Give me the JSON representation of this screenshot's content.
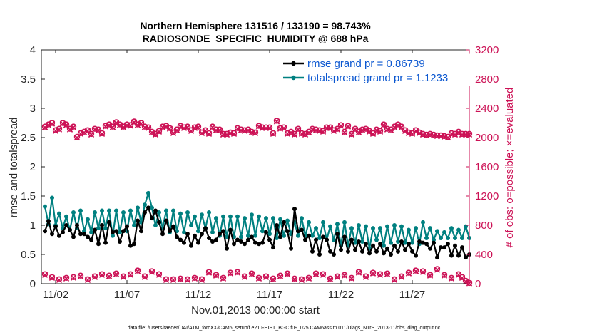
{
  "colors": {
    "rmse": "#000000",
    "spread": "#008080",
    "obs": "#cc1155",
    "legend_text": "#0b57d0",
    "axis": "#262626"
  },
  "footer_text": "data file: /Users/raeder/DAI/ATM_forcXX/CAM6_setup/f.e21.FHIST_BGC.f09_025.CAM6assim.011/Diags_NTrS_2013-11/obs_diag_output.nc",
  "chart_data": {
    "type": "line",
    "title": "Northern Hemisphere 131516 / 133190 = 98.743%",
    "subtitle": "RADIOSONDE_SPECIFIC_HUMIDITY @ 688 hPa",
    "xlabel": "Nov.01,2013 00:00:00 start",
    "ylabel": "rmse and totalspread",
    "y2label": "# of obs: o=possible; ×=evaluated",
    "xlim": [
      1,
      31
    ],
    "ylim": [
      0,
      4
    ],
    "y2lim": [
      0,
      3200
    ],
    "x_ticks": [
      2,
      7,
      12,
      17,
      22,
      27
    ],
    "x_tick_labels": [
      "11/02",
      "11/07",
      "11/12",
      "11/17",
      "11/22",
      "11/27"
    ],
    "y_ticks": [
      0,
      0.5,
      1,
      1.5,
      2,
      2.5,
      3,
      3.5,
      4
    ],
    "y_tick_labels": [
      "0",
      "0.5",
      "1",
      "1.5",
      "2",
      "2.5",
      "3",
      "3.5",
      "4"
    ],
    "y2_ticks": [
      0,
      400,
      800,
      1200,
      1600,
      2000,
      2400,
      2800,
      3200
    ],
    "y2_tick_labels": [
      "0",
      "400",
      "800",
      "1200",
      "1600",
      "2000",
      "2400",
      "2800",
      "3200"
    ],
    "legend": [
      "rmse grand pr = 0.86739",
      "totalspread grand pr = 1.1233"
    ],
    "x": [
      1.25,
      1.5,
      1.75,
      2.0,
      2.25,
      2.5,
      2.75,
      3.0,
      3.25,
      3.5,
      3.75,
      4.0,
      4.25,
      4.5,
      4.75,
      5.0,
      5.25,
      5.5,
      5.75,
      6.0,
      6.25,
      6.5,
      6.75,
      7.0,
      7.25,
      7.5,
      7.75,
      8.0,
      8.25,
      8.5,
      8.75,
      9.0,
      9.25,
      9.5,
      9.75,
      10.0,
      10.25,
      10.5,
      10.75,
      11.0,
      11.25,
      11.5,
      11.75,
      12.0,
      12.25,
      12.5,
      12.75,
      13.0,
      13.25,
      13.5,
      13.75,
      14.0,
      14.25,
      14.5,
      14.75,
      15.0,
      15.25,
      15.5,
      15.75,
      16.0,
      16.25,
      16.5,
      16.75,
      17.0,
      17.25,
      17.5,
      17.75,
      18.0,
      18.25,
      18.5,
      18.75,
      19.0,
      19.25,
      19.5,
      19.75,
      20.0,
      20.25,
      20.5,
      20.75,
      21.0,
      21.25,
      21.5,
      21.75,
      22.0,
      22.25,
      22.5,
      22.75,
      23.0,
      23.25,
      23.5,
      23.75,
      24.0,
      24.25,
      24.5,
      24.75,
      25.0,
      25.25,
      25.5,
      25.75,
      26.0,
      26.25,
      26.5,
      26.75,
      27.0,
      27.25,
      27.5,
      27.75,
      28.0,
      28.25,
      28.5,
      28.75,
      29.0,
      29.25,
      29.5,
      29.75,
      30.0,
      30.25,
      30.5,
      30.75,
      31.0
    ],
    "series": [
      {
        "name": "rmse",
        "marker": "dot",
        "values": [
          0.9,
          1.07,
          0.85,
          0.98,
          0.82,
          0.88,
          1.0,
          0.92,
          0.8,
          1.0,
          0.85,
          0.85,
          0.8,
          0.75,
          0.92,
          0.68,
          1.0,
          0.7,
          1.05,
          0.88,
          0.9,
          0.72,
          0.9,
          0.98,
          0.65,
          0.68,
          1.08,
          0.9,
          1.22,
          1.3,
          1.12,
          1.25,
          1.05,
          0.85,
          1.08,
          0.9,
          0.98,
          0.8,
          0.75,
          0.7,
          0.85,
          0.65,
          0.82,
          0.7,
          0.85,
          0.95,
          0.78,
          0.72,
          0.75,
          0.85,
          0.9,
          0.6,
          0.92,
          0.68,
          0.75,
          0.72,
          0.68,
          0.75,
          0.8,
          0.7,
          0.68,
          0.7,
          0.88,
          0.75,
          0.62,
          1.0,
          0.8,
          1.05,
          0.9,
          0.6,
          1.28,
          0.9,
          0.92,
          0.75,
          0.82,
          0.55,
          0.75,
          0.5,
          0.8,
          0.75,
          0.55,
          0.5,
          0.85,
          0.58,
          0.8,
          0.55,
          0.75,
          0.58,
          0.72,
          0.55,
          0.68,
          0.52,
          0.65,
          0.55,
          0.68,
          0.52,
          0.6,
          0.5,
          0.65,
          0.55,
          0.72,
          0.58,
          0.68,
          0.55,
          0.48,
          0.72,
          0.7,
          0.68,
          0.6,
          0.7,
          0.45,
          0.62,
          0.62,
          0.68,
          0.48,
          0.65,
          0.48,
          0.62,
          0.45,
          0.5
        ]
      },
      {
        "name": "totalspread",
        "marker": "dot",
        "values": [
          1.32,
          1.02,
          1.47,
          1.0,
          1.2,
          0.95,
          1.15,
          0.92,
          1.22,
          0.95,
          1.25,
          0.9,
          1.1,
          0.88,
          1.22,
          0.95,
          1.25,
          0.95,
          1.25,
          0.82,
          1.25,
          0.88,
          1.22,
          0.9,
          1.25,
          1.0,
          1.3,
          1.05,
          1.35,
          1.55,
          1.3,
          1.0,
          1.22,
          0.95,
          1.25,
          0.88,
          1.25,
          0.9,
          1.2,
          0.88,
          1.22,
          1.0,
          1.15,
          0.9,
          1.18,
          0.95,
          1.22,
          0.88,
          1.12,
          0.82,
          1.15,
          0.8,
          1.15,
          0.8,
          1.15,
          0.8,
          1.12,
          0.82,
          1.18,
          0.82,
          1.15,
          0.9,
          1.12,
          0.85,
          1.12,
          0.78,
          1.1,
          0.82,
          1.08,
          0.85,
          1.05,
          0.82,
          1.12,
          0.82,
          1.05,
          0.82,
          0.95,
          0.78,
          1.05,
          0.75,
          0.98,
          0.75,
          1.02,
          0.65,
          1.05,
          0.65,
          0.95,
          0.7,
          1.0,
          0.72,
          0.98,
          0.6,
          0.95,
          0.75,
          0.95,
          0.65,
          0.98,
          0.7,
          1.0,
          0.72,
          0.98,
          0.7,
          0.92,
          0.7,
          0.95,
          0.68,
          1.05,
          0.78,
          0.95,
          0.75,
          0.9,
          0.78,
          0.88,
          0.78,
          0.95,
          0.78,
          0.92,
          0.78,
          0.98,
          0.78
        ]
      },
      {
        "name": "obs_possible",
        "axis": "right",
        "marker": "o",
        "values": [
          2150,
          2180,
          2200,
          2100,
          2120,
          2200,
          2180,
          2120,
          2150,
          2010,
          2060,
          2080,
          2100,
          2050,
          2120,
          2110,
          2060,
          2160,
          2180,
          2150,
          2210,
          2180,
          2150,
          2180,
          2170,
          2220,
          2180,
          2200,
          2150,
          2140,
          2080,
          2050,
          2090,
          2150,
          2160,
          2130,
          2070,
          2110,
          2160,
          2140,
          2150,
          2100,
          2140,
          2150,
          2070,
          2100,
          2060,
          2150,
          2110,
          2110,
          2050,
          2050,
          2070,
          2060,
          2130,
          2110,
          2100,
          2110,
          2080,
          2070,
          2160,
          2140,
          2140,
          2140,
          2060,
          2230,
          2130,
          2140,
          2060,
          2080,
          2050,
          2120,
          2060,
          2050,
          2080,
          2120,
          2110,
          2100,
          2090,
          2140,
          2140,
          2100,
          2120,
          2170,
          2080,
          2160,
          2050,
          2120,
          2080,
          2110,
          2120,
          2090,
          2060,
          2110,
          2090,
          2180,
          2120,
          2110,
          2150,
          2180,
          2150,
          2100,
          2070,
          2060,
          2100,
          2070,
          2050,
          2040,
          2050,
          2040,
          2030,
          2030,
          2020,
          2010,
          2060,
          2050,
          2080,
          2050,
          2050,
          2050
        ]
      },
      {
        "name": "obs_evaluated",
        "axis": "right",
        "marker": "x",
        "values": [
          2140,
          2170,
          2190,
          2090,
          2110,
          2190,
          2170,
          2110,
          2140,
          2000,
          2050,
          2070,
          2090,
          2040,
          2110,
          2100,
          2050,
          2150,
          2170,
          2140,
          2200,
          2170,
          2140,
          2170,
          2160,
          2210,
          2170,
          2190,
          2140,
          2130,
          2070,
          2040,
          2080,
          2140,
          2150,
          2120,
          2060,
          2100,
          2150,
          2130,
          2140,
          2090,
          2130,
          2140,
          2060,
          2090,
          2050,
          2140,
          2100,
          2100,
          2040,
          2040,
          2060,
          2050,
          2120,
          2100,
          2090,
          2100,
          2070,
          2060,
          2150,
          2130,
          2130,
          2130,
          2050,
          2220,
          2120,
          2130,
          2050,
          2070,
          2040,
          2110,
          2050,
          2040,
          2070,
          2110,
          2100,
          2090,
          2080,
          2130,
          2130,
          2090,
          2110,
          2160,
          2070,
          2150,
          2040,
          2110,
          2070,
          2100,
          2110,
          2080,
          2050,
          2100,
          2080,
          2170,
          2110,
          2100,
          2140,
          2170,
          2140,
          2090,
          2060,
          2050,
          2090,
          2060,
          2040,
          2030,
          2040,
          2030,
          2020,
          2020,
          2010,
          2000,
          2050,
          2040,
          2070,
          2040,
          2040,
          2040
        ]
      }
    ],
    "obs_low": {
      "x": [
        1.25,
        1.75,
        2.25,
        2.75,
        3.25,
        3.75,
        4.25,
        4.75,
        5.25,
        5.75,
        6.25,
        6.75,
        7.25,
        7.75,
        8.25,
        8.75,
        9.25,
        9.75,
        10.25,
        10.75,
        11.25,
        11.75,
        12.25,
        12.75,
        13.25,
        13.75,
        14.25,
        14.75,
        15.25,
        15.75,
        16.25,
        16.75,
        17.25,
        17.75,
        18.25,
        18.75,
        19.25,
        19.75,
        20.25,
        20.75,
        21.25,
        21.75,
        22.25,
        22.75,
        23.25,
        23.75,
        24.25,
        24.75,
        25.25,
        25.75,
        26.25,
        26.75,
        27.25,
        27.75,
        28.25,
        28.75,
        29.25,
        29.75,
        30.25,
        30.5,
        30.75,
        31.0
      ],
      "possible": [
        130,
        90,
        60,
        80,
        90,
        110,
        60,
        100,
        130,
        110,
        140,
        100,
        130,
        180,
        100,
        170,
        130,
        60,
        60,
        70,
        60,
        80,
        60,
        160,
        120,
        80,
        150,
        160,
        100,
        140,
        80,
        100,
        70,
        110,
        140,
        70,
        60,
        80,
        140,
        130,
        70,
        100,
        120,
        80,
        160,
        100,
        150,
        130,
        140,
        60,
        100,
        150,
        180,
        170,
        120,
        200,
        120,
        80,
        130,
        90,
        40,
        10
      ],
      "evaluated": [
        120,
        80,
        50,
        70,
        80,
        100,
        50,
        90,
        120,
        100,
        130,
        90,
        120,
        170,
        90,
        160,
        120,
        50,
        50,
        60,
        50,
        70,
        50,
        150,
        110,
        70,
        140,
        150,
        90,
        130,
        70,
        90,
        60,
        100,
        130,
        60,
        50,
        70,
        130,
        120,
        60,
        90,
        110,
        70,
        150,
        90,
        140,
        120,
        130,
        50,
        90,
        140,
        170,
        160,
        110,
        190,
        110,
        70,
        120,
        80,
        30,
        5
      ]
    }
  }
}
